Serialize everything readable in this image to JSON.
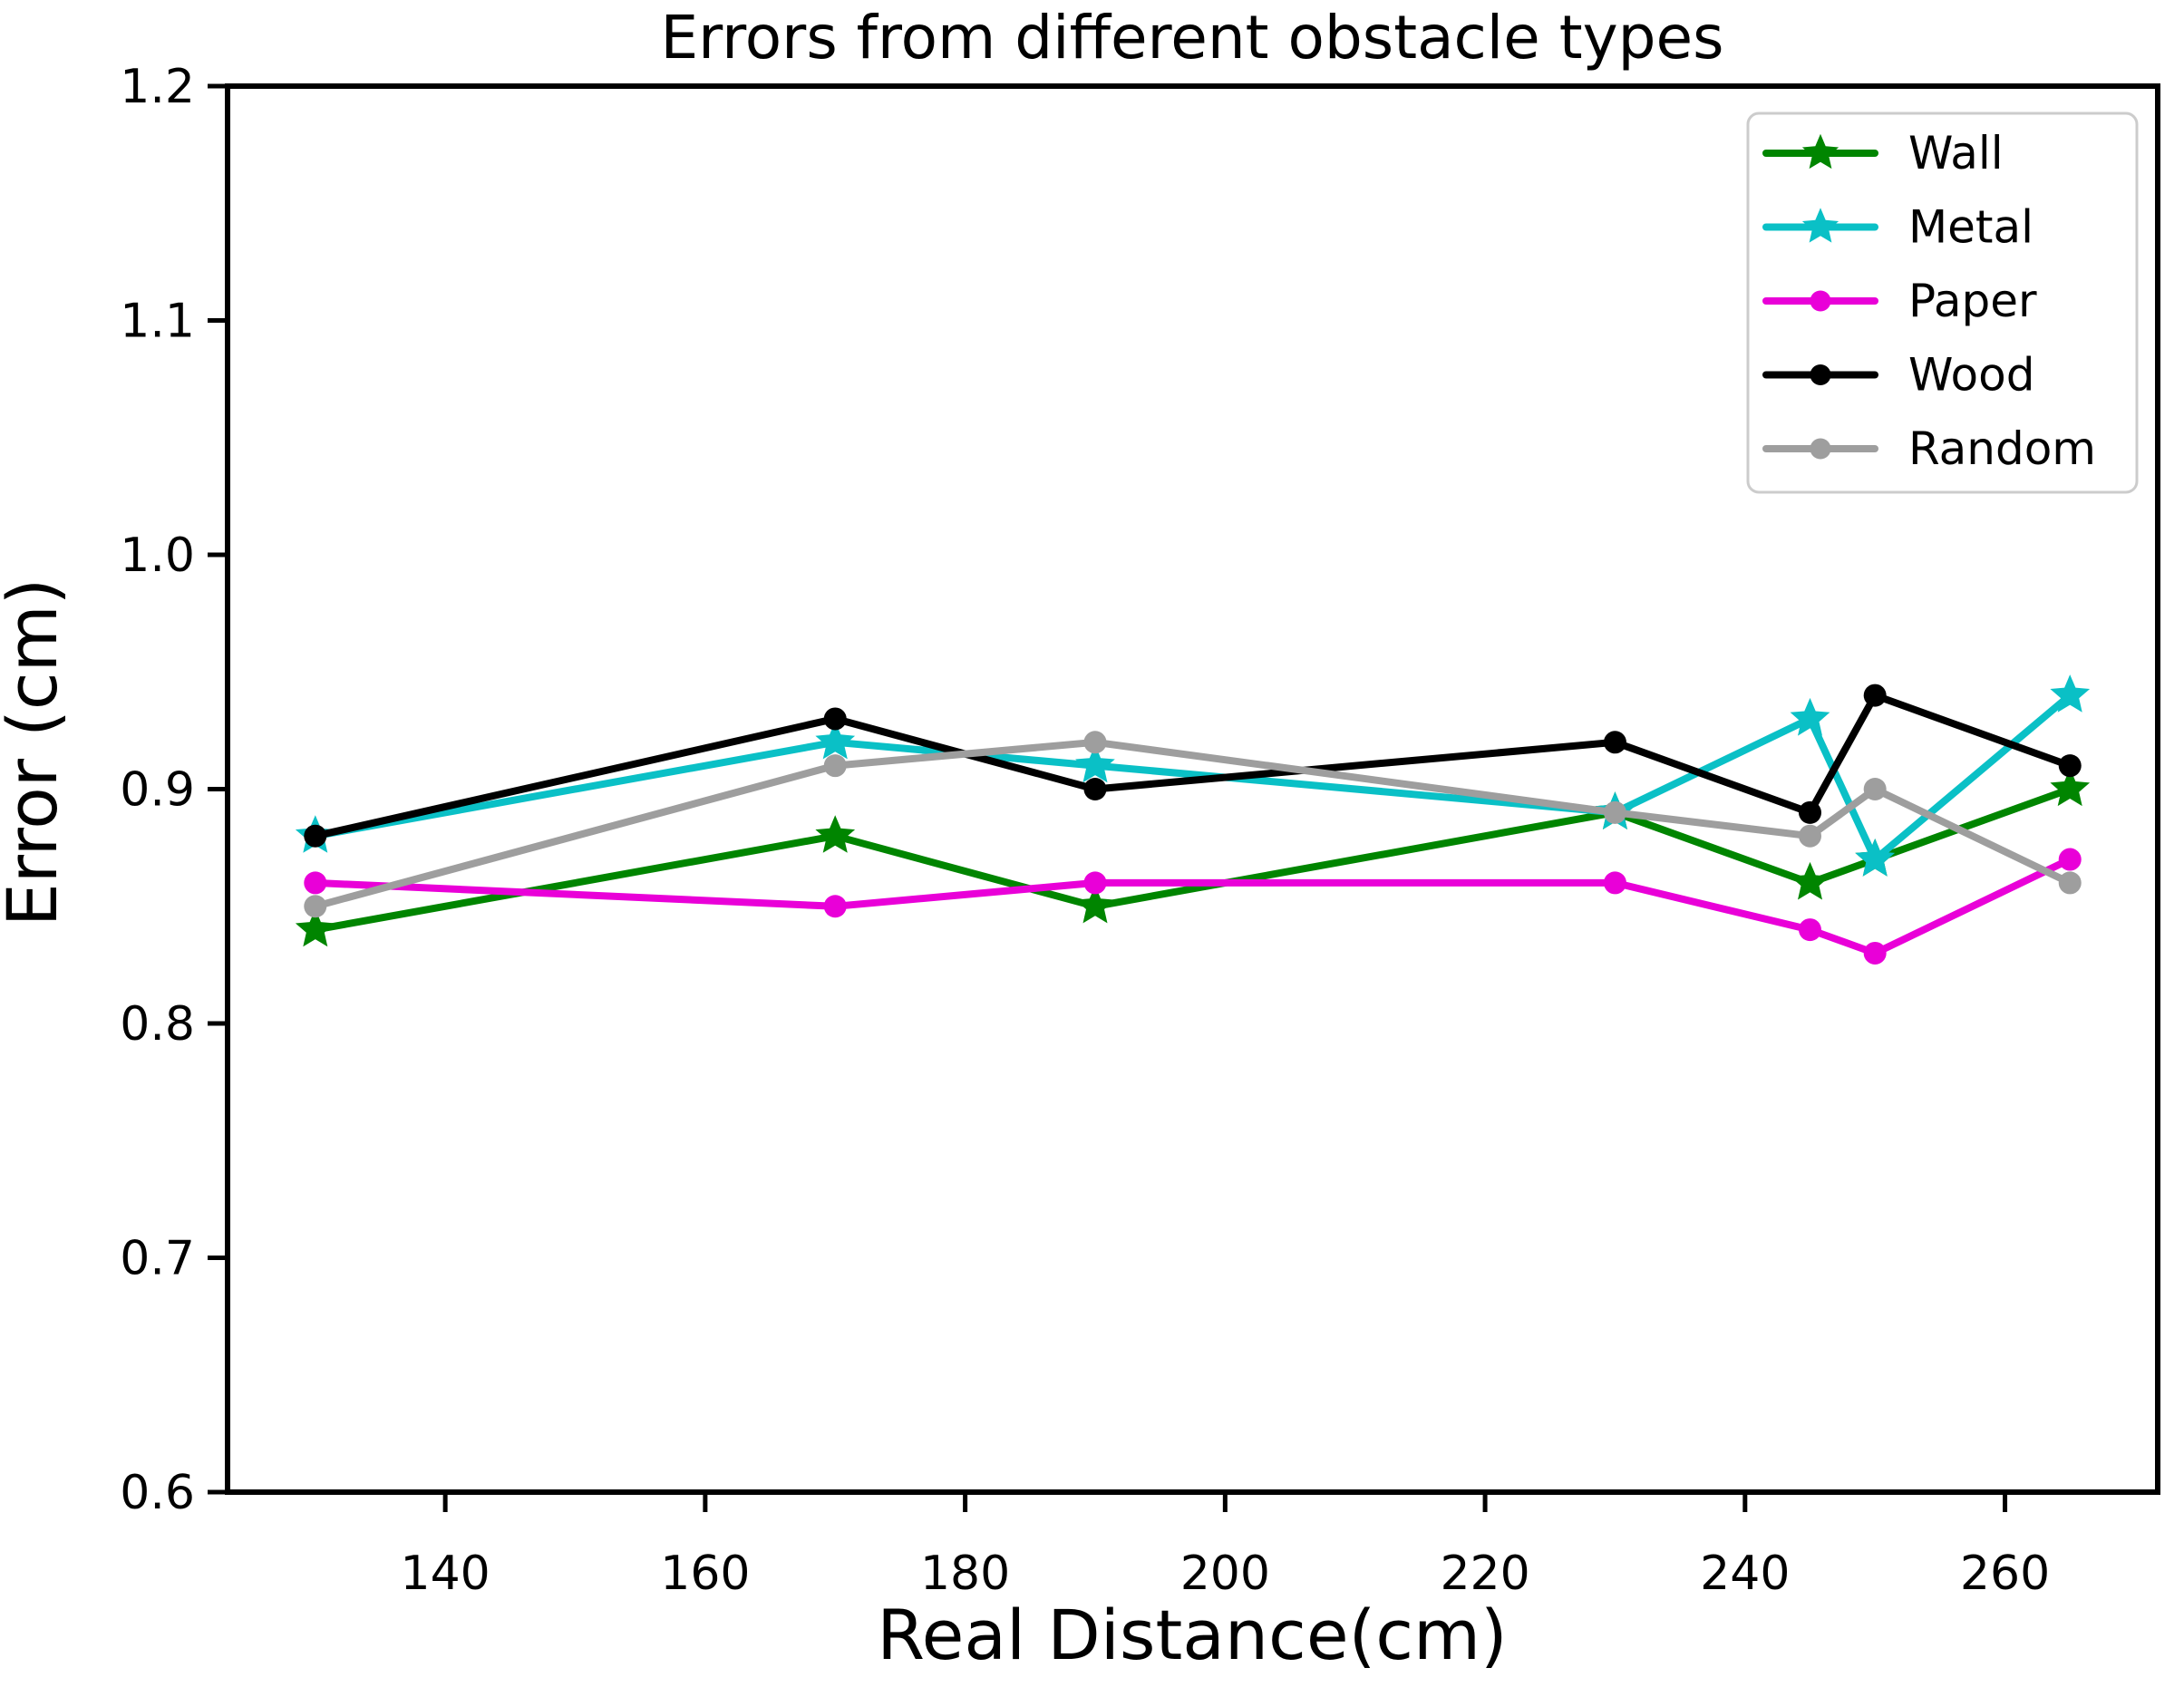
{
  "figure": {
    "background": "#ffffff",
    "spine_color": "#000000",
    "legend_border_color": "#cccccc"
  },
  "chart_data": {
    "type": "line",
    "title": "Errors from different obstacle types",
    "xlabel": "Real Distance(cm)",
    "ylabel": "Error (cm)",
    "x": [
      130,
      170,
      190,
      230,
      245,
      250,
      265
    ],
    "x_ticks": [
      140,
      160,
      180,
      200,
      220,
      240,
      260
    ],
    "y_ticks": [
      0.6,
      0.7,
      0.8,
      0.9,
      1.0,
      1.1,
      1.2
    ],
    "xlim": [
      123.25,
      271.75
    ],
    "ylim": [
      0.6,
      1.2
    ],
    "grid": false,
    "legend_position": "upper right",
    "series": [
      {
        "name": "Wall",
        "color": "#008500",
        "marker": "star",
        "values": [
          0.84,
          0.88,
          0.85,
          0.89,
          0.86,
          0.87,
          0.9
        ]
      },
      {
        "name": "Metal",
        "color": "#0ac0c6",
        "marker": "star",
        "values": [
          0.88,
          0.92,
          0.91,
          0.89,
          0.93,
          0.87,
          0.94
        ]
      },
      {
        "name": "Paper",
        "color": "#e900d8",
        "marker": "circle",
        "values": [
          0.86,
          0.85,
          0.86,
          0.86,
          0.84,
          0.83,
          0.87
        ]
      },
      {
        "name": "Wood",
        "color": "#000000",
        "marker": "circle",
        "values": [
          0.88,
          0.93,
          0.9,
          0.92,
          0.89,
          0.94,
          0.91
        ]
      },
      {
        "name": "Random",
        "color": "#9e9e9e",
        "marker": "circle",
        "values": [
          0.85,
          0.91,
          0.92,
          0.89,
          0.88,
          0.9,
          0.86
        ]
      }
    ]
  }
}
